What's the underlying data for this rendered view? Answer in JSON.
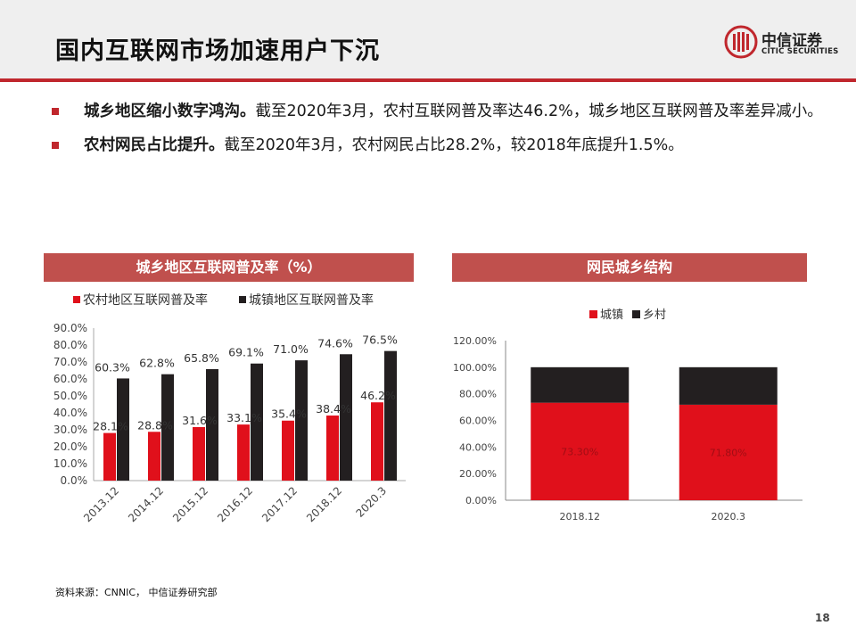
{
  "header": {
    "title": "国内互联网市场加速用户下沉",
    "logo_cn": "中信证券",
    "logo_en": "CITIC SECURITIES"
  },
  "bullets": [
    {
      "bold": "城乡地区缩小数字鸿沟。",
      "text": "截至2020年3月，农村互联网普及率达46.2%，城乡地区互联网普及率差异减小。"
    },
    {
      "bold": "农村网民占比提升。",
      "text": "截至2020年3月，农村网民占比28.2%，较2018年底提升1.5%。"
    }
  ],
  "chart_titles": {
    "left": "城乡地区互联网普及率（%）",
    "right": "网民城乡结构"
  },
  "colors": {
    "red": "#e0101b",
    "black": "#231f20",
    "accent": "#c0272d",
    "panel": "#c0504d"
  },
  "chart_data": [
    {
      "type": "bar",
      "title": "城乡地区互联网普及率（%）",
      "categories": [
        "2013.12",
        "2014.12",
        "2015.12",
        "2016.12",
        "2017.12",
        "2018.12",
        "2020.3"
      ],
      "series": [
        {
          "name": "农村地区互联网普及率",
          "values": [
            28.1,
            28.8,
            31.6,
            33.1,
            35.4,
            38.4,
            46.2
          ],
          "labels": [
            "28.1%",
            "28.8%",
            "31.6%",
            "33.1%",
            "35.4%",
            "38.4%",
            "46.2%"
          ]
        },
        {
          "name": "城镇地区互联网普及率",
          "values": [
            60.3,
            62.8,
            65.8,
            69.1,
            71.0,
            74.6,
            76.5
          ],
          "labels": [
            "60.3%",
            "62.8%",
            "65.8%",
            "69.1%",
            "71.0%",
            "74.6%",
            "76.5%"
          ]
        }
      ],
      "ylim": [
        0,
        90
      ],
      "yticks": [
        "0.0%",
        "10.0%",
        "20.0%",
        "30.0%",
        "40.0%",
        "50.0%",
        "60.0%",
        "70.0%",
        "80.0%",
        "90.0%"
      ],
      "legend": "top-left"
    },
    {
      "type": "bar",
      "stacked": true,
      "title": "网民城乡结构",
      "categories": [
        "2018.12",
        "2020.3"
      ],
      "series": [
        {
          "name": "城镇",
          "values": [
            73.3,
            71.8
          ],
          "labels": [
            "73.30%",
            "71.80%"
          ]
        },
        {
          "name": "乡村",
          "values": [
            26.7,
            28.2
          ]
        }
      ],
      "ylim": [
        0,
        120
      ],
      "yticks": [
        "0.00%",
        "20.00%",
        "40.00%",
        "60.00%",
        "80.00%",
        "100.00%",
        "120.00%"
      ],
      "legend": "top-center"
    }
  ],
  "footer": {
    "source": "资料来源：CNNIC， 中信证券研究部",
    "page": "18"
  }
}
